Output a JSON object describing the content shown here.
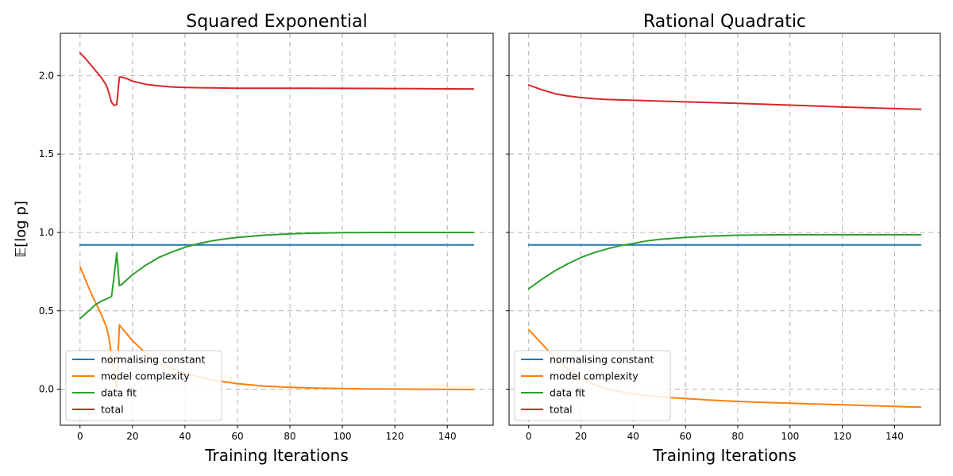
{
  "chart_data": [
    {
      "type": "line",
      "title": "Squared Exponential",
      "xlabel": "Training Iterations",
      "ylabel": "𝔼[log p]",
      "xlim": [
        -7.5,
        157.5
      ],
      "ylim": [
        -0.23,
        2.27
      ],
      "xticks": [
        0,
        20,
        40,
        60,
        80,
        100,
        120,
        140
      ],
      "yticks": [
        0.0,
        0.5,
        1.0,
        1.5,
        2.0
      ],
      "xtick_labels": [
        "0",
        "20",
        "40",
        "60",
        "80",
        "100",
        "120",
        "140"
      ],
      "ytick_labels": [
        "0.0",
        "0.5",
        "1.0",
        "1.5",
        "2.0"
      ],
      "grid": true,
      "legend_position": "bottom-left",
      "series": [
        {
          "name": "normalising constant",
          "color": "#1f77b4",
          "x": [
            0,
            150
          ],
          "y": [
            0.92,
            0.92
          ]
        },
        {
          "name": "model complexity",
          "color": "#ff7f0e",
          "x": [
            0,
            2,
            4,
            6,
            8,
            10,
            11,
            12,
            13,
            14,
            15,
            16,
            18,
            20,
            25,
            30,
            40,
            50,
            60,
            70,
            80,
            90,
            100,
            110,
            120,
            130,
            140,
            150
          ],
          "y": [
            0.78,
            0.7,
            0.62,
            0.55,
            0.48,
            0.4,
            0.33,
            0.22,
            0.1,
            0.0,
            0.41,
            0.39,
            0.35,
            0.31,
            0.23,
            0.17,
            0.1,
            0.06,
            0.035,
            0.02,
            0.012,
            0.007,
            0.004,
            0.002,
            0.001,
            0.0,
            -0.001,
            -0.002
          ]
        },
        {
          "name": "data fit",
          "color": "#2ca02c",
          "x": [
            0,
            2,
            4,
            6,
            8,
            10,
            12,
            13,
            14,
            15,
            16,
            18,
            20,
            25,
            30,
            35,
            40,
            45,
            50,
            55,
            60,
            70,
            80,
            90,
            100,
            110,
            120,
            130,
            140,
            150
          ],
          "y": [
            0.45,
            0.48,
            0.51,
            0.54,
            0.56,
            0.575,
            0.59,
            0.72,
            0.87,
            0.66,
            0.67,
            0.7,
            0.73,
            0.79,
            0.84,
            0.875,
            0.905,
            0.928,
            0.945,
            0.958,
            0.968,
            0.982,
            0.991,
            0.995,
            0.998,
            0.999,
            1.0,
            1.0,
            1.0,
            1.0
          ]
        },
        {
          "name": "total",
          "color": "#d62728",
          "x": [
            0,
            2,
            4,
            6,
            8,
            10,
            11,
            12,
            13,
            14,
            15,
            16,
            18,
            20,
            25,
            30,
            35,
            40,
            50,
            60,
            80,
            100,
            120,
            140,
            150
          ],
          "y": [
            2.145,
            2.11,
            2.07,
            2.03,
            1.99,
            1.94,
            1.89,
            1.83,
            1.81,
            1.815,
            1.99,
            1.99,
            1.98,
            1.965,
            1.945,
            1.935,
            1.928,
            1.925,
            1.922,
            1.92,
            1.92,
            1.919,
            1.918,
            1.916,
            1.915
          ]
        }
      ]
    },
    {
      "type": "line",
      "title": "Rational Quadratic",
      "xlabel": "Training Iterations",
      "ylabel": "",
      "xlim": [
        -7.5,
        157.5
      ],
      "ylim": [
        -0.23,
        2.27
      ],
      "xticks": [
        0,
        20,
        40,
        60,
        80,
        100,
        120,
        140
      ],
      "yticks": [
        0.0,
        0.5,
        1.0,
        1.5,
        2.0
      ],
      "xtick_labels": [
        "0",
        "20",
        "40",
        "60",
        "80",
        "100",
        "120",
        "140"
      ],
      "ytick_labels": [],
      "grid": true,
      "legend_position": "bottom-left",
      "series": [
        {
          "name": "normalising constant",
          "color": "#1f77b4",
          "x": [
            0,
            150
          ],
          "y": [
            0.92,
            0.92
          ]
        },
        {
          "name": "model complexity",
          "color": "#ff7f0e",
          "x": [
            0,
            5,
            10,
            15,
            20,
            25,
            30,
            40,
            50,
            60,
            70,
            80,
            90,
            100,
            110,
            120,
            130,
            140,
            150
          ],
          "y": [
            0.38,
            0.29,
            0.2,
            0.13,
            0.07,
            0.03,
            0.0,
            -0.03,
            -0.05,
            -0.06,
            -0.07,
            -0.078,
            -0.085,
            -0.09,
            -0.095,
            -0.1,
            -0.105,
            -0.11,
            -0.115
          ]
        },
        {
          "name": "data fit",
          "color": "#2ca02c",
          "x": [
            0,
            5,
            10,
            15,
            20,
            25,
            30,
            35,
            40,
            45,
            50,
            60,
            70,
            80,
            90,
            100,
            120,
            150
          ],
          "y": [
            0.64,
            0.7,
            0.755,
            0.8,
            0.84,
            0.87,
            0.895,
            0.915,
            0.93,
            0.945,
            0.955,
            0.968,
            0.977,
            0.982,
            0.984,
            0.985,
            0.985,
            0.985
          ]
        },
        {
          "name": "total",
          "color": "#d62728",
          "x": [
            0,
            5,
            10,
            15,
            20,
            25,
            30,
            40,
            50,
            60,
            80,
            100,
            120,
            150
          ],
          "y": [
            1.94,
            1.91,
            1.885,
            1.87,
            1.86,
            1.853,
            1.848,
            1.843,
            1.838,
            1.833,
            1.823,
            1.812,
            1.8,
            1.785
          ]
        }
      ]
    }
  ]
}
